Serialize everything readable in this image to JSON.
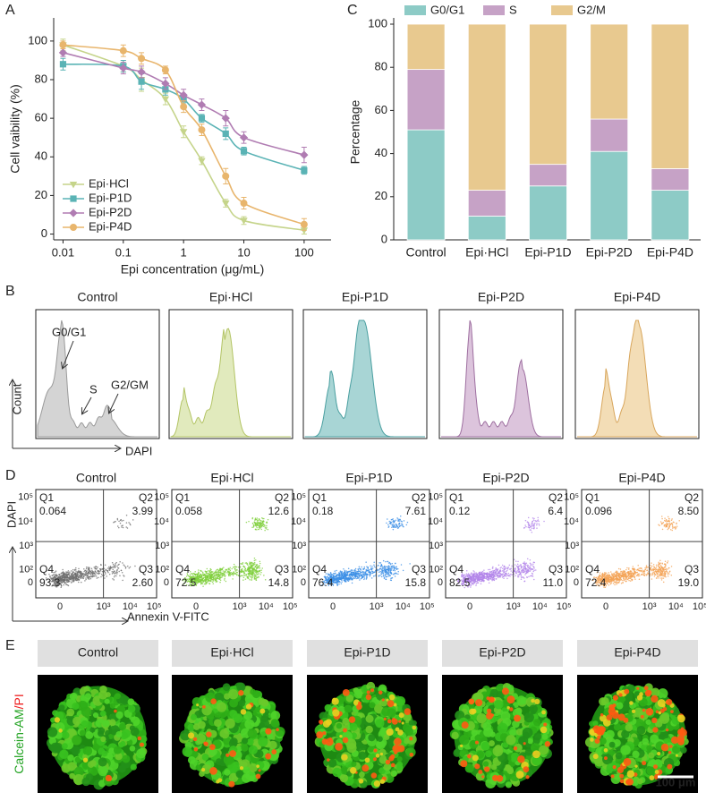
{
  "panel_labels": [
    "A",
    "B",
    "C",
    "D",
    "E"
  ],
  "chart_data": [
    {
      "type": "line",
      "x_label": "Epi concentration (μg/mL)",
      "y_label": "Cell vaibility (%)",
      "x": [
        0.01,
        0.1,
        0.2,
        0.5,
        1,
        2,
        5,
        10,
        100
      ],
      "x_scale": "log",
      "xlim": [
        0.007,
        280
      ],
      "xticks": [
        0.01,
        0.1,
        1,
        10,
        100
      ],
      "ylim": [
        -3,
        112
      ],
      "yticks": [
        0,
        20,
        40,
        60,
        80,
        100
      ],
      "legend": "lower left",
      "series": [
        {
          "name": "Epi·HCl",
          "color": "#c5d48a",
          "marker": "triangle-down",
          "values": [
            98,
            87,
            80,
            70,
            53,
            38,
            16,
            7,
            2
          ],
          "errors": [
            3,
            3,
            6,
            3,
            3,
            2,
            2,
            2,
            2
          ]
        },
        {
          "name": "Epi-P1D",
          "color": "#5ab3b5",
          "marker": "square",
          "values": [
            88,
            87,
            79,
            75,
            70,
            60,
            52,
            43,
            33
          ],
          "errors": [
            3,
            3,
            4,
            3,
            2,
            2,
            3,
            2,
            2
          ]
        },
        {
          "name": "Epi-P2D",
          "color": "#b07cb2",
          "marker": "diamond",
          "values": [
            94,
            86,
            84,
            78,
            72,
            67,
            60,
            50,
            41
          ],
          "errors": [
            2,
            3,
            3,
            3,
            3,
            3,
            4,
            3,
            4
          ]
        },
        {
          "name": "Epi-P4D",
          "color": "#e8b56c",
          "marker": "circle",
          "values": [
            98,
            95,
            91,
            85,
            66,
            54,
            30,
            16,
            5
          ],
          "errors": [
            2,
            3,
            3,
            2,
            3,
            3,
            4,
            3,
            3
          ]
        }
      ]
    },
    {
      "type": "bar",
      "stacked": true,
      "y_label": "Percentage",
      "categories": [
        "Control",
        "Epi·HCl",
        "Epi-P1D",
        "Epi-P2D",
        "Epi-P4D"
      ],
      "ylim": [
        0,
        100
      ],
      "yticks": [
        0,
        20,
        40,
        60,
        80,
        100
      ],
      "legend": "top",
      "series": [
        {
          "name": "G0/G1",
          "color": "#8dcbc6",
          "values": [
            51,
            11,
            25,
            41,
            23
          ]
        },
        {
          "name": "S",
          "color": "#c6a2c6",
          "values": [
            28,
            12,
            10,
            15,
            10
          ]
        },
        {
          "name": "G2/M",
          "color": "#e8c98f",
          "values": [
            21,
            77,
            65,
            44,
            67
          ]
        }
      ]
    }
  ],
  "cell_cycle": {
    "titles": [
      "Control",
      "Epi·HCl",
      "Epi-P1D",
      "Epi-P2D",
      "Epi-P4D"
    ],
    "annotations": [
      "G0/G1",
      "S",
      "G2/GM"
    ],
    "y_label": "Count",
    "x_label": "DAPI"
  },
  "apoptosis": {
    "titles": [
      "Control",
      "Epi·HCl",
      "Epi-P1D",
      "Epi-P2D",
      "Epi-P4D"
    ],
    "quadrants": [
      "Q1",
      "Q2",
      "Q3",
      "Q4"
    ],
    "panels": [
      [
        "0.064",
        "3.99",
        "2.60",
        "93.3"
      ],
      [
        "0.058",
        "12.6",
        "14.8",
        "72.5"
      ],
      [
        "0.18",
        "7.61",
        "15.8",
        "76.4"
      ],
      [
        "0.12",
        "6.4",
        "11.0",
        "82.5"
      ],
      [
        "0.096",
        "8.50",
        "19.0",
        "72.4"
      ]
    ],
    "y_ticks": [
      "10⁵",
      "10⁴",
      "10³",
      "10²",
      "0"
    ],
    "x_ticks": [
      "0",
      "10³",
      "10⁴",
      "10⁵"
    ],
    "y_label": "DAPI",
    "x_label": "Annexin V-FITC"
  },
  "live_dead": {
    "titles": [
      "Control",
      "Epi·HCl",
      "Epi-P1D",
      "Epi-P2D",
      "Epi-P4D"
    ],
    "stain_live": "Calcein-AM",
    "stain_dead": "/PI",
    "scale_bar": "100 μm"
  }
}
